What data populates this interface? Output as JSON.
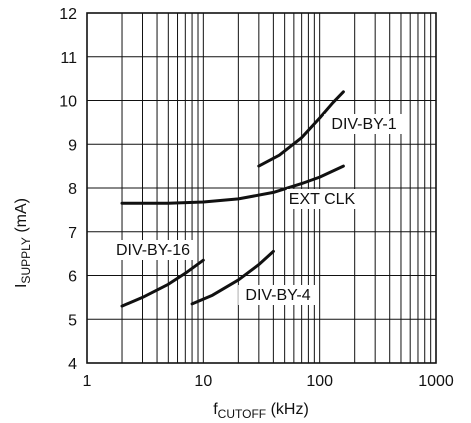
{
  "chart_data": {
    "type": "line",
    "xscale": "log",
    "xlim": [
      1,
      1000
    ],
    "ylim": [
      4,
      12
    ],
    "grid": true,
    "x_ticks": [
      "1",
      "10",
      "100",
      "1000"
    ],
    "y_ticks": [
      "4",
      "5",
      "6",
      "7",
      "8",
      "9",
      "10",
      "11",
      "12"
    ],
    "ylabel": {
      "main": "I",
      "sub": "SUPPLY",
      "rest": " (mA)"
    },
    "xlabel": {
      "main": "f",
      "sub": "CUTOFF",
      "rest": " (kHz)"
    },
    "series": [
      {
        "name": "DIV-BY-1",
        "x": [
          30,
          45,
          70,
          100,
          130,
          160
        ],
        "y": [
          8.5,
          8.75,
          9.15,
          9.6,
          9.95,
          10.2
        ]
      },
      {
        "name": "EXT CLK",
        "x": [
          2,
          5,
          10,
          20,
          40,
          70,
          100,
          160
        ],
        "y": [
          7.65,
          7.65,
          7.68,
          7.75,
          7.9,
          8.1,
          8.25,
          8.5
        ]
      },
      {
        "name": "DIV-BY-16",
        "x": [
          2,
          3,
          5,
          7,
          10
        ],
        "y": [
          5.3,
          5.5,
          5.8,
          6.05,
          6.35
        ]
      },
      {
        "name": "DIV-BY-4",
        "x": [
          8,
          12,
          20,
          30,
          40
        ],
        "y": [
          5.35,
          5.55,
          5.9,
          6.25,
          6.55
        ]
      }
    ]
  }
}
